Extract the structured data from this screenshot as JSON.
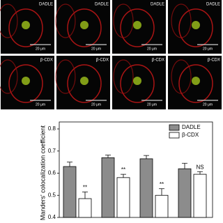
{
  "micrographs": {
    "row_labels": [
      "DADLE",
      "β-CDX"
    ],
    "scale_label": "20 μm"
  },
  "chart_data": {
    "type": "bar",
    "ylabel": "Manders' colocalization coefficient",
    "categories": [
      null,
      null,
      null,
      null
    ],
    "series": [
      {
        "name": "DADLE",
        "color": "#8c8c8c",
        "values": [
          0.63,
          0.67,
          0.665,
          0.62
        ],
        "errors": [
          0.02,
          0.012,
          0.015,
          0.025
        ]
      },
      {
        "name": "β-CDX",
        "color": "#ffffff",
        "values": [
          0.485,
          0.58,
          0.5,
          0.595
        ],
        "errors": [
          0.03,
          0.015,
          0.03,
          0.012
        ]
      }
    ],
    "annotations": [
      "**",
      "**",
      "**",
      "NS"
    ],
    "ylim": [
      0.4,
      0.8
    ],
    "yticks": [
      0.4,
      0.5,
      0.6,
      0.7,
      0.8
    ],
    "legend": "upper right"
  }
}
